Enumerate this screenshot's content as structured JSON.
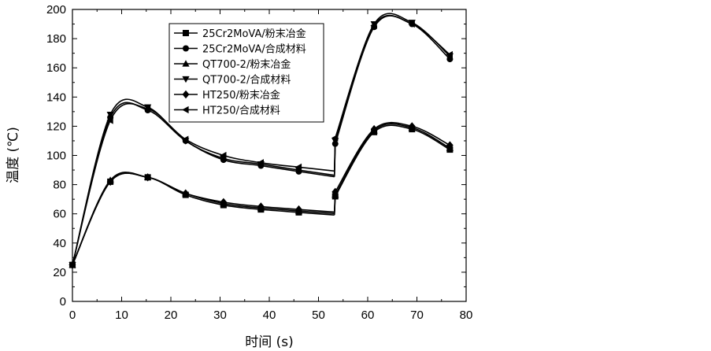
{
  "chart_data": {
    "type": "line",
    "xlabel": "时间 (s)",
    "ylabel": "温度 (℃)",
    "xlim": [
      0,
      80
    ],
    "ylim": [
      0,
      200
    ],
    "xticks": [
      "0",
      "10",
      "20",
      "30",
      "40",
      "50",
      "60",
      "70",
      "80"
    ],
    "yticks": [
      "0",
      "20",
      "40",
      "60",
      "80",
      "100",
      "120",
      "140",
      "160",
      "180",
      "200"
    ],
    "grid": false,
    "legend_position": "top-center",
    "series": [
      {
        "name": "25Cr2MoVA/粉末冶金",
        "marker": "square",
        "x": [
          0,
          7.7,
          15.3,
          23,
          30.7,
          38.3,
          46,
          53.4,
          61.3,
          69,
          76.7
        ],
        "y": [
          25,
          82,
          85,
          73,
          66,
          63,
          61,
          72,
          116,
          118,
          104
        ]
      },
      {
        "name": "25Cr2MoVA/合成材料",
        "marker": "circle",
        "x": [
          0,
          7.7,
          15.3,
          23,
          30.7,
          38.3,
          46,
          53.4,
          61.3,
          69,
          76.7
        ],
        "y": [
          25,
          126,
          131,
          110,
          97,
          93,
          89,
          108,
          188,
          190,
          166
        ]
      },
      {
        "name": "QT700-2/粉末冶金",
        "marker": "triangle-up",
        "x": [
          0,
          7.7,
          15.3,
          23,
          30.7,
          38.3,
          46,
          53.4,
          61.3,
          69,
          76.7
        ],
        "y": [
          25,
          83,
          85,
          74,
          67,
          64,
          62,
          73,
          117,
          119,
          105
        ]
      },
      {
        "name": "QT700-2/合成材料",
        "marker": "triangle-down",
        "x": [
          0,
          7.7,
          15.3,
          23,
          30.7,
          38.3,
          46,
          53.4,
          61.3,
          69,
          76.7
        ],
        "y": [
          25,
          128,
          133,
          110,
          98,
          94,
          90,
          110,
          190,
          191,
          168
        ]
      },
      {
        "name": "HT250/粉末冶金",
        "marker": "diamond",
        "x": [
          0,
          7.7,
          15.3,
          23,
          30.7,
          38.3,
          46,
          53.4,
          61.3,
          69,
          76.7
        ],
        "y": [
          25,
          82,
          85,
          74,
          68,
          65,
          63,
          75,
          118,
          120,
          107
        ]
      },
      {
        "name": "HT250/合成材料",
        "marker": "triangle-left",
        "x": [
          0,
          7.7,
          15.3,
          23,
          30.7,
          38.3,
          46,
          53.4,
          61.3,
          69,
          76.7
        ],
        "y": [
          25,
          124,
          132,
          111,
          100,
          95,
          92,
          112,
          189,
          190,
          169
        ]
      }
    ]
  }
}
